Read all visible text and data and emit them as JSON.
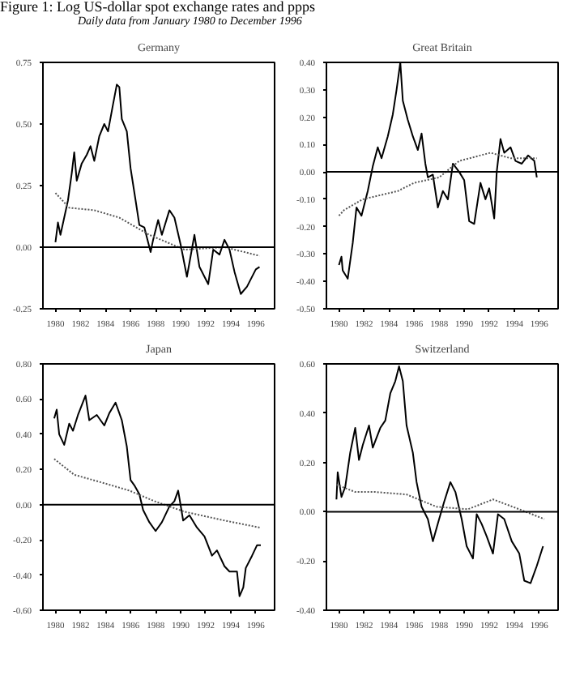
{
  "chart_data": [
    {
      "type": "line",
      "title": "Germany",
      "annotations": [
        "Figure 1:  Log US-dollar spot exchange rates and ppps",
        "Daily data from January 1980 to December 1996"
      ],
      "xlim": [
        1979,
        1997.5
      ],
      "xticks": [
        1980,
        1982,
        1984,
        1986,
        1988,
        1990,
        1992,
        1994,
        1996
      ],
      "ylim": [
        -0.25,
        0.75
      ],
      "yticks": [
        {
          "value": -0.25,
          "label": "-0.25"
        },
        {
          "value": 0,
          "label": "0.00"
        },
        {
          "value": 0.25,
          "label": "0.25"
        },
        {
          "value": 0.5,
          "label": "0.50"
        },
        {
          "value": 0.75,
          "label": "0.75"
        }
      ],
      "grid": false,
      "ref_lines": [
        {
          "axis": "y",
          "value": 0,
          "color": "#000000"
        }
      ],
      "series": [
        {
          "color": "#000000",
          "line_style": "solid",
          "x": [
            1980.0,
            1980.2,
            1980.4,
            1980.7,
            1981.0,
            1981.3,
            1981.5,
            1981.7,
            1982.1,
            1982.5,
            1982.8,
            1983.1,
            1983.5,
            1983.9,
            1984.2,
            1984.6,
            1984.9,
            1985.1,
            1985.3,
            1985.7,
            1986.0,
            1986.4,
            1986.7,
            1987.1,
            1987.6,
            1987.8,
            1988.2,
            1988.5,
            1989.1,
            1989.5,
            1990.0,
            1990.5,
            1991.1,
            1991.5,
            1992.2,
            1992.6,
            1993.1,
            1993.5,
            1993.9,
            1994.3,
            1994.8,
            1995.3,
            1996.0,
            1996.3
          ],
          "values": [
            0.02,
            0.1,
            0.05,
            0.12,
            0.19,
            0.3,
            0.385,
            0.27,
            0.34,
            0.375,
            0.41,
            0.35,
            0.45,
            0.5,
            0.47,
            0.58,
            0.66,
            0.65,
            0.52,
            0.47,
            0.32,
            0.19,
            0.09,
            0.08,
            -0.02,
            0.03,
            0.11,
            0.05,
            0.15,
            0.12,
            0.01,
            -0.12,
            0.05,
            -0.08,
            -0.15,
            -0.01,
            -0.03,
            0.03,
            -0.01,
            -0.1,
            -0.19,
            -0.16,
            -0.09,
            -0.08
          ]
        },
        {
          "color": "#555555",
          "line_style": "dotted",
          "x": [
            1980.0,
            1981.1,
            1983.1,
            1985.1,
            1987.5,
            1990.3,
            1993.5,
            1996.3
          ],
          "values": [
            0.22,
            0.16,
            0.15,
            0.12,
            0.05,
            -0.01,
            0.0,
            -0.035
          ]
        }
      ]
    },
    {
      "type": "line",
      "title": "Great Britain",
      "xlim": [
        1979,
        1997.5
      ],
      "xticks": [
        1980,
        1982,
        1984,
        1986,
        1988,
        1990,
        1992,
        1994,
        1996
      ],
      "ylim": [
        -0.5,
        0.4
      ],
      "yticks": [
        {
          "value": -0.5,
          "label": "-0.50"
        },
        {
          "value": -0.4,
          "label": "-0.40"
        },
        {
          "value": -0.3,
          "label": "-0.30"
        },
        {
          "value": -0.2,
          "label": "-0.20"
        },
        {
          "value": -0.1,
          "label": "-0.10"
        },
        {
          "value": 0,
          "label": "0.00"
        },
        {
          "value": 0.1,
          "label": "0.10"
        },
        {
          "value": 0.2,
          "label": "0.20"
        },
        {
          "value": 0.3,
          "label": "0.30"
        },
        {
          "value": 0.4,
          "label": "0.40"
        }
      ],
      "grid": false,
      "ref_lines": [
        {
          "axis": "y",
          "value": 0,
          "color": "#000000"
        }
      ],
      "series": [
        {
          "color": "#000000",
          "line_style": "solid",
          "x": [
            1980.0,
            1980.2,
            1980.3,
            1980.7,
            1981.1,
            1981.4,
            1981.8,
            1982.3,
            1982.7,
            1983.1,
            1983.4,
            1983.9,
            1984.3,
            1984.6,
            1984.9,
            1985.1,
            1985.5,
            1985.9,
            1986.3,
            1986.6,
            1986.9,
            1987.1,
            1987.5,
            1987.9,
            1988.3,
            1988.7,
            1989.1,
            1989.6,
            1990.0,
            1990.4,
            1990.8,
            1991.3,
            1991.7,
            1992.0,
            1992.4,
            1992.6,
            1992.9,
            1993.2,
            1993.7,
            1994.1,
            1994.6,
            1995.1,
            1995.6,
            1995.8
          ],
          "values": [
            -0.34,
            -0.31,
            -0.36,
            -0.39,
            -0.26,
            -0.13,
            -0.16,
            -0.07,
            0.02,
            0.09,
            0.05,
            0.13,
            0.21,
            0.3,
            0.4,
            0.26,
            0.19,
            0.13,
            0.08,
            0.14,
            0.03,
            -0.02,
            -0.01,
            -0.13,
            -0.07,
            -0.1,
            0.03,
            0.0,
            -0.03,
            -0.18,
            -0.19,
            -0.04,
            -0.1,
            -0.06,
            -0.17,
            0.0,
            0.12,
            0.07,
            0.09,
            0.04,
            0.03,
            0.06,
            0.04,
            -0.02
          ]
        },
        {
          "color": "#555555",
          "line_style": "dotted",
          "x": [
            1980.0,
            1980.4,
            1981.9,
            1984.7,
            1986.0,
            1988.0,
            1989.6,
            1992.1,
            1993.7,
            1995.8
          ],
          "values": [
            -0.16,
            -0.14,
            -0.1,
            -0.07,
            -0.04,
            -0.02,
            0.04,
            0.07,
            0.05,
            0.05
          ]
        }
      ]
    },
    {
      "type": "line",
      "title": "Japan",
      "xlim": [
        1979,
        1997.5
      ],
      "xticks": [
        1980,
        1982,
        1984,
        1986,
        1988,
        1990,
        1992,
        1994,
        1996
      ],
      "ylim": [
        -0.6,
        0.8
      ],
      "yticks": [
        {
          "value": -0.6,
          "label": "-0.60"
        },
        {
          "value": -0.4,
          "label": "-0.40"
        },
        {
          "value": -0.2,
          "label": "-0.20"
        },
        {
          "value": 0,
          "label": "0.00"
        },
        {
          "value": 0.2,
          "label": "0.20"
        },
        {
          "value": 0.4,
          "label": "0.40"
        },
        {
          "value": 0.6,
          "label": "0.60"
        },
        {
          "value": 0.8,
          "label": "0.80"
        }
      ],
      "grid": false,
      "ref_lines": [
        {
          "axis": "y",
          "value": 0,
          "color": "#000000"
        }
      ],
      "series": [
        {
          "color": "#000000",
          "line_style": "solid",
          "x": [
            1979.9,
            1980.1,
            1980.3,
            1980.7,
            1981.1,
            1981.4,
            1981.8,
            1982.4,
            1982.7,
            1983.3,
            1983.9,
            1984.3,
            1984.8,
            1985.3,
            1985.7,
            1986.0,
            1986.3,
            1986.7,
            1987.0,
            1987.5,
            1988.0,
            1988.5,
            1989.1,
            1989.5,
            1989.8,
            1990.2,
            1990.7,
            1991.3,
            1991.9,
            1992.5,
            1992.9,
            1993.5,
            1993.9,
            1994.5,
            1994.7,
            1995.0,
            1995.2,
            1995.7,
            1996.1,
            1996.4
          ],
          "values": [
            0.49,
            0.54,
            0.4,
            0.34,
            0.46,
            0.42,
            0.51,
            0.62,
            0.48,
            0.51,
            0.45,
            0.52,
            0.58,
            0.48,
            0.33,
            0.14,
            0.11,
            0.06,
            -0.03,
            -0.1,
            -0.15,
            -0.1,
            -0.01,
            0.02,
            0.08,
            -0.09,
            -0.06,
            -0.13,
            -0.18,
            -0.29,
            -0.26,
            -0.35,
            -0.38,
            -0.38,
            -0.52,
            -0.47,
            -0.36,
            -0.29,
            -0.23,
            -0.23
          ]
        },
        {
          "color": "#555555",
          "line_style": "dotted",
          "x": [
            1979.9,
            1981.5,
            1983.5,
            1985.9,
            1987.9,
            1990.3,
            1993.5,
            1996.3
          ],
          "values": [
            0.26,
            0.17,
            0.13,
            0.08,
            0.02,
            -0.04,
            -0.09,
            -0.13
          ]
        }
      ]
    },
    {
      "type": "line",
      "title": "Switzerland",
      "xlim": [
        1979,
        1997.5
      ],
      "xticks": [
        1980,
        1982,
        1984,
        1986,
        1988,
        1990,
        1992,
        1994,
        1996
      ],
      "ylim": [
        -0.4,
        0.6
      ],
      "yticks": [
        {
          "value": -0.4,
          "label": "-0.40"
        },
        {
          "value": -0.2,
          "label": "-0.20"
        },
        {
          "value": 0,
          "label": "0.00"
        },
        {
          "value": 0.2,
          "label": "0.20"
        },
        {
          "value": 0.4,
          "label": "0.40"
        },
        {
          "value": 0.6,
          "label": "0.60"
        }
      ],
      "grid": false,
      "ref_lines": [
        {
          "axis": "y",
          "value": 0,
          "color": "#000000"
        }
      ],
      "series": [
        {
          "color": "#000000",
          "line_style": "solid",
          "x": [
            1979.8,
            1979.9,
            1980.2,
            1980.5,
            1980.9,
            1981.3,
            1981.6,
            1981.9,
            1982.4,
            1982.7,
            1983.3,
            1983.7,
            1984.1,
            1984.5,
            1984.8,
            1985.1,
            1985.4,
            1985.9,
            1986.2,
            1986.6,
            1987.1,
            1987.5,
            1988.0,
            1988.4,
            1988.9,
            1989.3,
            1989.8,
            1990.2,
            1990.7,
            1991.0,
            1991.4,
            1991.8,
            1992.3,
            1992.7,
            1993.2,
            1993.8,
            1994.4,
            1994.8,
            1995.3,
            1995.8,
            1996.3
          ],
          "values": [
            0.05,
            0.16,
            0.06,
            0.1,
            0.24,
            0.34,
            0.21,
            0.27,
            0.35,
            0.26,
            0.34,
            0.37,
            0.48,
            0.53,
            0.59,
            0.53,
            0.35,
            0.24,
            0.12,
            0.02,
            -0.03,
            -0.12,
            -0.03,
            0.04,
            0.12,
            0.08,
            -0.03,
            -0.14,
            -0.19,
            -0.01,
            -0.05,
            -0.1,
            -0.17,
            -0.01,
            -0.03,
            -0.12,
            -0.17,
            -0.28,
            -0.29,
            -0.22,
            -0.14
          ]
        },
        {
          "color": "#555555",
          "line_style": "dotted",
          "x": [
            1979.8,
            1981.3,
            1982.9,
            1985.4,
            1987.8,
            1990.3,
            1992.3,
            1994.4,
            1996.4
          ],
          "values": [
            0.11,
            0.08,
            0.08,
            0.07,
            0.02,
            0.01,
            0.05,
            0.01,
            -0.03
          ]
        }
      ]
    }
  ]
}
